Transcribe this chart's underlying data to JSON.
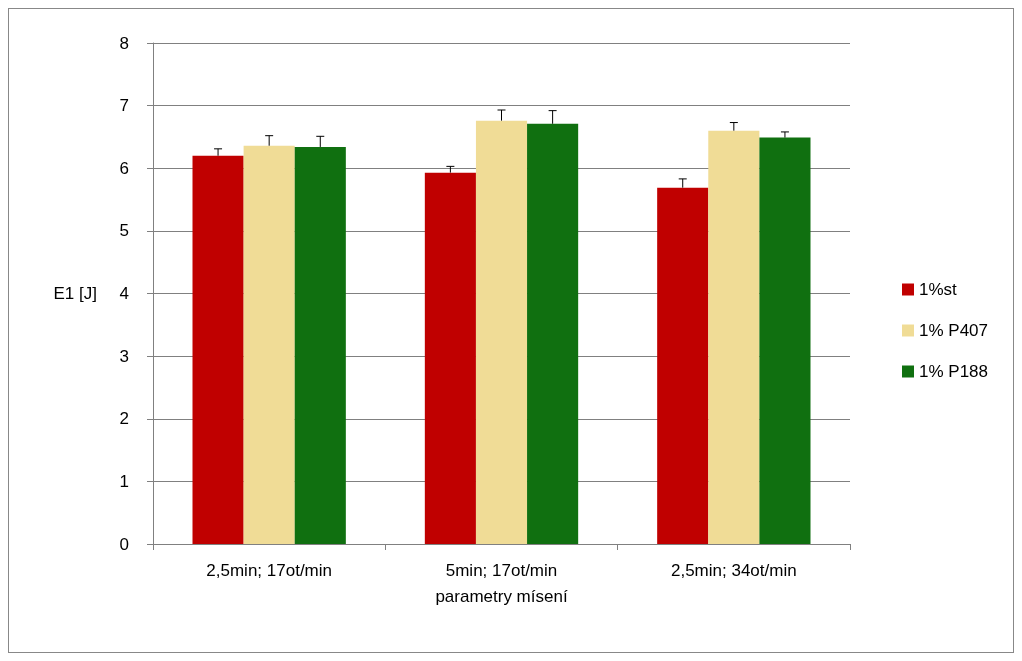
{
  "chart_data": {
    "type": "bar",
    "xlabel": "parametry mísení",
    "ylabel": "E1 [J]",
    "categories": [
      "2,5min; 17ot/min",
      "5min; 17ot/min",
      "2,5min; 34ot/min"
    ],
    "series": [
      {
        "name": "1%st",
        "color": "#c00000",
        "values": [
          6.2,
          5.93,
          5.69
        ],
        "errors": [
          [
            6.2,
            6.31
          ],
          [
            5.93,
            6.03
          ],
          [
            5.69,
            5.83
          ]
        ]
      },
      {
        "name": "1% P407",
        "color": "#f0dc96",
        "values": [
          6.36,
          6.76,
          6.6
        ],
        "errors": [
          [
            6.36,
            6.52
          ],
          [
            6.76,
            6.93
          ],
          [
            6.6,
            6.73
          ]
        ]
      },
      {
        "name": "1% P188",
        "color": "#107010",
        "values": [
          6.34,
          6.71,
          6.49
        ],
        "errors": [
          [
            6.34,
            6.51
          ],
          [
            6.71,
            6.92
          ],
          [
            6.49,
            6.58
          ]
        ]
      }
    ],
    "ylim": [
      0,
      8
    ],
    "yticks": [
      0,
      1,
      2,
      3,
      4,
      5,
      6,
      7,
      8
    ],
    "grid": "y",
    "legend": "right"
  }
}
